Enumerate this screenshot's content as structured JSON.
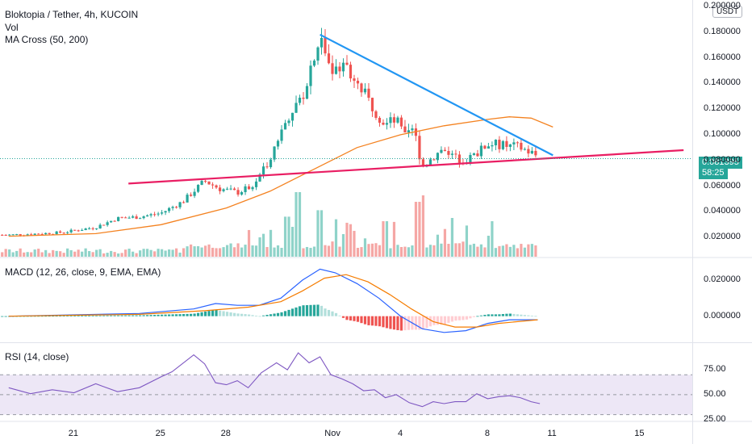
{
  "legend": {
    "title": "Bloktopia / Tether, 4h, KUCOIN",
    "vol": "Vol",
    "ma_cross": "MA Cross (50, 200)",
    "macd": "MACD (12, 26, close, 9, EMA, EMA)",
    "rsi": "RSI (14, close)"
  },
  "currency_badge": "USDT",
  "price_label": {
    "price": "0.081395",
    "countdown": "58:25"
  },
  "colors": {
    "up": "#26a69a",
    "down": "#ef5350",
    "vol_up": "#8fd3c9",
    "vol_down": "#f5a7a5",
    "ma_fast": "#f48220",
    "resistance": "#2196f3",
    "support": "#e91e63",
    "macd_line": "#2962ff",
    "signal_line": "#f57c00",
    "rsi_line": "#7e57c2",
    "rsi_band": "#ede7f6"
  },
  "chart_data": [
    {
      "type": "candlestick",
      "title": "Bloktopia / Tether, 4h, KUCOIN",
      "ylim": [
        0.005,
        0.205
      ],
      "y_ticks": [
        "0.200000",
        "0.180000",
        "0.160000",
        "0.140000",
        "0.120000",
        "0.100000",
        "0.080000",
        "0.060000",
        "0.040000",
        "0.020000"
      ],
      "x_ticks": [
        "21",
        "25",
        "28",
        "Nov",
        "4",
        "8",
        "11",
        "15"
      ],
      "close_path": [
        {
          "day": 18.0,
          "price": 0.022
        },
        {
          "day": 19.5,
          "price": 0.023
        },
        {
          "day": 20.5,
          "price": 0.024
        },
        {
          "day": 22.0,
          "price": 0.028
        },
        {
          "day": 23.0,
          "price": 0.035
        },
        {
          "day": 24.0,
          "price": 0.036
        },
        {
          "day": 25.0,
          "price": 0.039
        },
        {
          "day": 26.0,
          "price": 0.048
        },
        {
          "day": 27.0,
          "price": 0.064
        },
        {
          "day": 27.7,
          "price": 0.058
        },
        {
          "day": 28.5,
          "price": 0.055
        },
        {
          "day": 29.2,
          "price": 0.06
        },
        {
          "day": 29.8,
          "price": 0.075
        },
        {
          "day": 30.5,
          "price": 0.102
        },
        {
          "day": 31.0,
          "price": 0.12
        },
        {
          "day": 31.5,
          "price": 0.13
        },
        {
          "day": 32.1,
          "price": 0.168
        },
        {
          "day": 32.4,
          "price": 0.176
        },
        {
          "day": 32.8,
          "price": 0.15
        },
        {
          "day": 33.3,
          "price": 0.158
        },
        {
          "day": 33.8,
          "price": 0.145
        },
        {
          "day": 34.3,
          "price": 0.132
        },
        {
          "day": 34.8,
          "price": 0.12
        },
        {
          "day": 35.3,
          "price": 0.108
        },
        {
          "day": 35.8,
          "price": 0.112
        },
        {
          "day": 36.2,
          "price": 0.098
        },
        {
          "day": 36.6,
          "price": 0.104
        },
        {
          "day": 37.0,
          "price": 0.075
        },
        {
          "day": 37.5,
          "price": 0.083
        },
        {
          "day": 38.0,
          "price": 0.09
        },
        {
          "day": 38.5,
          "price": 0.082
        },
        {
          "day": 39.0,
          "price": 0.08
        },
        {
          "day": 39.5,
          "price": 0.085
        },
        {
          "day": 40.0,
          "price": 0.093
        },
        {
          "day": 40.5,
          "price": 0.092
        },
        {
          "day": 41.0,
          "price": 0.091
        },
        {
          "day": 41.5,
          "price": 0.09
        },
        {
          "day": 42.0,
          "price": 0.086
        },
        {
          "day": 42.3,
          "price": 0.083
        }
      ],
      "volume_peaks": [
        {
          "day": 29.5,
          "volume": 0.3
        },
        {
          "day": 30.8,
          "volume": 0.62
        },
        {
          "day": 31.3,
          "volume": 1.0
        },
        {
          "day": 32.3,
          "volume": 0.72
        },
        {
          "day": 33.0,
          "volume": 0.58
        },
        {
          "day": 35.3,
          "volume": 0.55
        },
        {
          "day": 36.8,
          "volume": 0.85
        },
        {
          "day": 37.1,
          "volume": 0.95
        },
        {
          "day": 38.4,
          "volume": 0.6
        },
        {
          "day": 40.2,
          "volume": 0.55
        }
      ],
      "ma_50": [
        {
          "day": 18.0,
          "price": 0.021
        },
        {
          "day": 22.0,
          "price": 0.023
        },
        {
          "day": 25.0,
          "price": 0.03
        },
        {
          "day": 28.0,
          "price": 0.043
        },
        {
          "day": 30.0,
          "price": 0.056
        },
        {
          "day": 32.0,
          "price": 0.073
        },
        {
          "day": 34.0,
          "price": 0.09
        },
        {
          "day": 36.0,
          "price": 0.1
        },
        {
          "day": 38.0,
          "price": 0.107
        },
        {
          "day": 40.0,
          "price": 0.112
        },
        {
          "day": 41.0,
          "price": 0.114
        },
        {
          "day": 42.0,
          "price": 0.113
        },
        {
          "day": 43.0,
          "price": 0.106
        }
      ],
      "trendlines": [
        {
          "name": "resistance",
          "from": {
            "day": 32.3,
            "price": 0.178
          },
          "to": {
            "day": 43.0,
            "price": 0.084
          }
        },
        {
          "name": "support",
          "from": {
            "day": 23.5,
            "price": 0.062
          },
          "to": {
            "day": 49.0,
            "price": 0.088
          }
        }
      ]
    },
    {
      "type": "line",
      "title": "MACD (12, 26, close, 9, EMA, EMA)",
      "ylim": [
        -0.014,
        0.032
      ],
      "y_ticks": [
        "0.020000",
        "0.000000"
      ],
      "series": [
        {
          "name": "MACD",
          "points": [
            {
              "day": 18.0,
              "value": 0.0
            },
            {
              "day": 24.0,
              "value": 0.0015
            },
            {
              "day": 26.5,
              "value": 0.004
            },
            {
              "day": 27.5,
              "value": 0.007
            },
            {
              "day": 28.5,
              "value": 0.006
            },
            {
              "day": 29.5,
              "value": 0.006
            },
            {
              "day": 30.5,
              "value": 0.01
            },
            {
              "day": 31.5,
              "value": 0.02
            },
            {
              "day": 32.3,
              "value": 0.026
            },
            {
              "day": 33.0,
              "value": 0.024
            },
            {
              "day": 34.0,
              "value": 0.018
            },
            {
              "day": 35.0,
              "value": 0.01
            },
            {
              "day": 36.0,
              "value": 0.0
            },
            {
              "day": 37.0,
              "value": -0.007
            },
            {
              "day": 38.0,
              "value": -0.009
            },
            {
              "day": 39.0,
              "value": -0.008
            },
            {
              "day": 40.0,
              "value": -0.004
            },
            {
              "day": 41.0,
              "value": -0.002
            },
            {
              "day": 42.3,
              "value": -0.002
            }
          ]
        },
        {
          "name": "Signal",
          "points": [
            {
              "day": 18.0,
              "value": 0.0
            },
            {
              "day": 24.0,
              "value": 0.001
            },
            {
              "day": 27.0,
              "value": 0.003
            },
            {
              "day": 29.0,
              "value": 0.005
            },
            {
              "day": 30.5,
              "value": 0.008
            },
            {
              "day": 31.5,
              "value": 0.014
            },
            {
              "day": 32.5,
              "value": 0.021
            },
            {
              "day": 33.5,
              "value": 0.023
            },
            {
              "day": 34.5,
              "value": 0.019
            },
            {
              "day": 35.5,
              "value": 0.012
            },
            {
              "day": 36.5,
              "value": 0.004
            },
            {
              "day": 37.5,
              "value": -0.003
            },
            {
              "day": 38.5,
              "value": -0.006
            },
            {
              "day": 39.5,
              "value": -0.006
            },
            {
              "day": 40.5,
              "value": -0.004
            },
            {
              "day": 42.3,
              "value": -0.002
            }
          ]
        }
      ]
    },
    {
      "type": "line",
      "title": "RSI (14, close)",
      "ylim": [
        24,
        101
      ],
      "y_ticks": [
        "75.00",
        "50.00",
        "25.00"
      ],
      "bands": [
        70,
        50,
        30
      ],
      "series": [
        {
          "name": "RSI",
          "points": [
            {
              "day": 18.0,
              "value": 57
            },
            {
              "day": 19.0,
              "value": 51
            },
            {
              "day": 20.0,
              "value": 55
            },
            {
              "day": 21.0,
              "value": 52
            },
            {
              "day": 22.0,
              "value": 61
            },
            {
              "day": 23.0,
              "value": 53
            },
            {
              "day": 24.0,
              "value": 57
            },
            {
              "day": 25.0,
              "value": 68
            },
            {
              "day": 25.5,
              "value": 73
            },
            {
              "day": 26.5,
              "value": 90
            },
            {
              "day": 27.0,
              "value": 81
            },
            {
              "day": 27.5,
              "value": 62
            },
            {
              "day": 28.0,
              "value": 60
            },
            {
              "day": 28.5,
              "value": 64
            },
            {
              "day": 29.0,
              "value": 57
            },
            {
              "day": 29.6,
              "value": 72
            },
            {
              "day": 30.3,
              "value": 82
            },
            {
              "day": 30.8,
              "value": 75
            },
            {
              "day": 31.3,
              "value": 92
            },
            {
              "day": 31.8,
              "value": 82
            },
            {
              "day": 32.3,
              "value": 88
            },
            {
              "day": 32.8,
              "value": 70
            },
            {
              "day": 33.3,
              "value": 66
            },
            {
              "day": 33.8,
              "value": 61
            },
            {
              "day": 34.3,
              "value": 54
            },
            {
              "day": 34.8,
              "value": 55
            },
            {
              "day": 35.3,
              "value": 47
            },
            {
              "day": 35.8,
              "value": 50
            },
            {
              "day": 36.4,
              "value": 42
            },
            {
              "day": 37.0,
              "value": 38
            },
            {
              "day": 37.5,
              "value": 43
            },
            {
              "day": 38.0,
              "value": 41
            },
            {
              "day": 38.5,
              "value": 43
            },
            {
              "day": 39.0,
              "value": 43
            },
            {
              "day": 39.5,
              "value": 51
            },
            {
              "day": 40.0,
              "value": 46
            },
            {
              "day": 40.5,
              "value": 48
            },
            {
              "day": 41.0,
              "value": 49
            },
            {
              "day": 41.5,
              "value": 47
            },
            {
              "day": 42.0,
              "value": 43
            },
            {
              "day": 42.4,
              "value": 41
            }
          ]
        }
      ]
    }
  ]
}
